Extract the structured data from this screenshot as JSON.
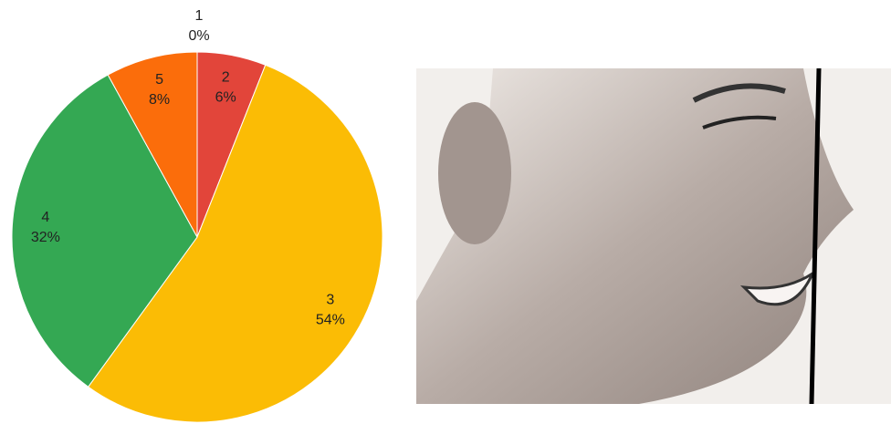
{
  "chart_data": {
    "type": "pie",
    "categories": [
      "1",
      "2",
      "3",
      "4",
      "5"
    ],
    "values": [
      0,
      6,
      54,
      32,
      8
    ],
    "value_labels": [
      "0%",
      "6%",
      "54%",
      "32%",
      "8%"
    ],
    "colors": [
      "#7b8fcf",
      "#e2453a",
      "#fbbc05",
      "#34a853",
      "#fb6d0b"
    ]
  }
}
